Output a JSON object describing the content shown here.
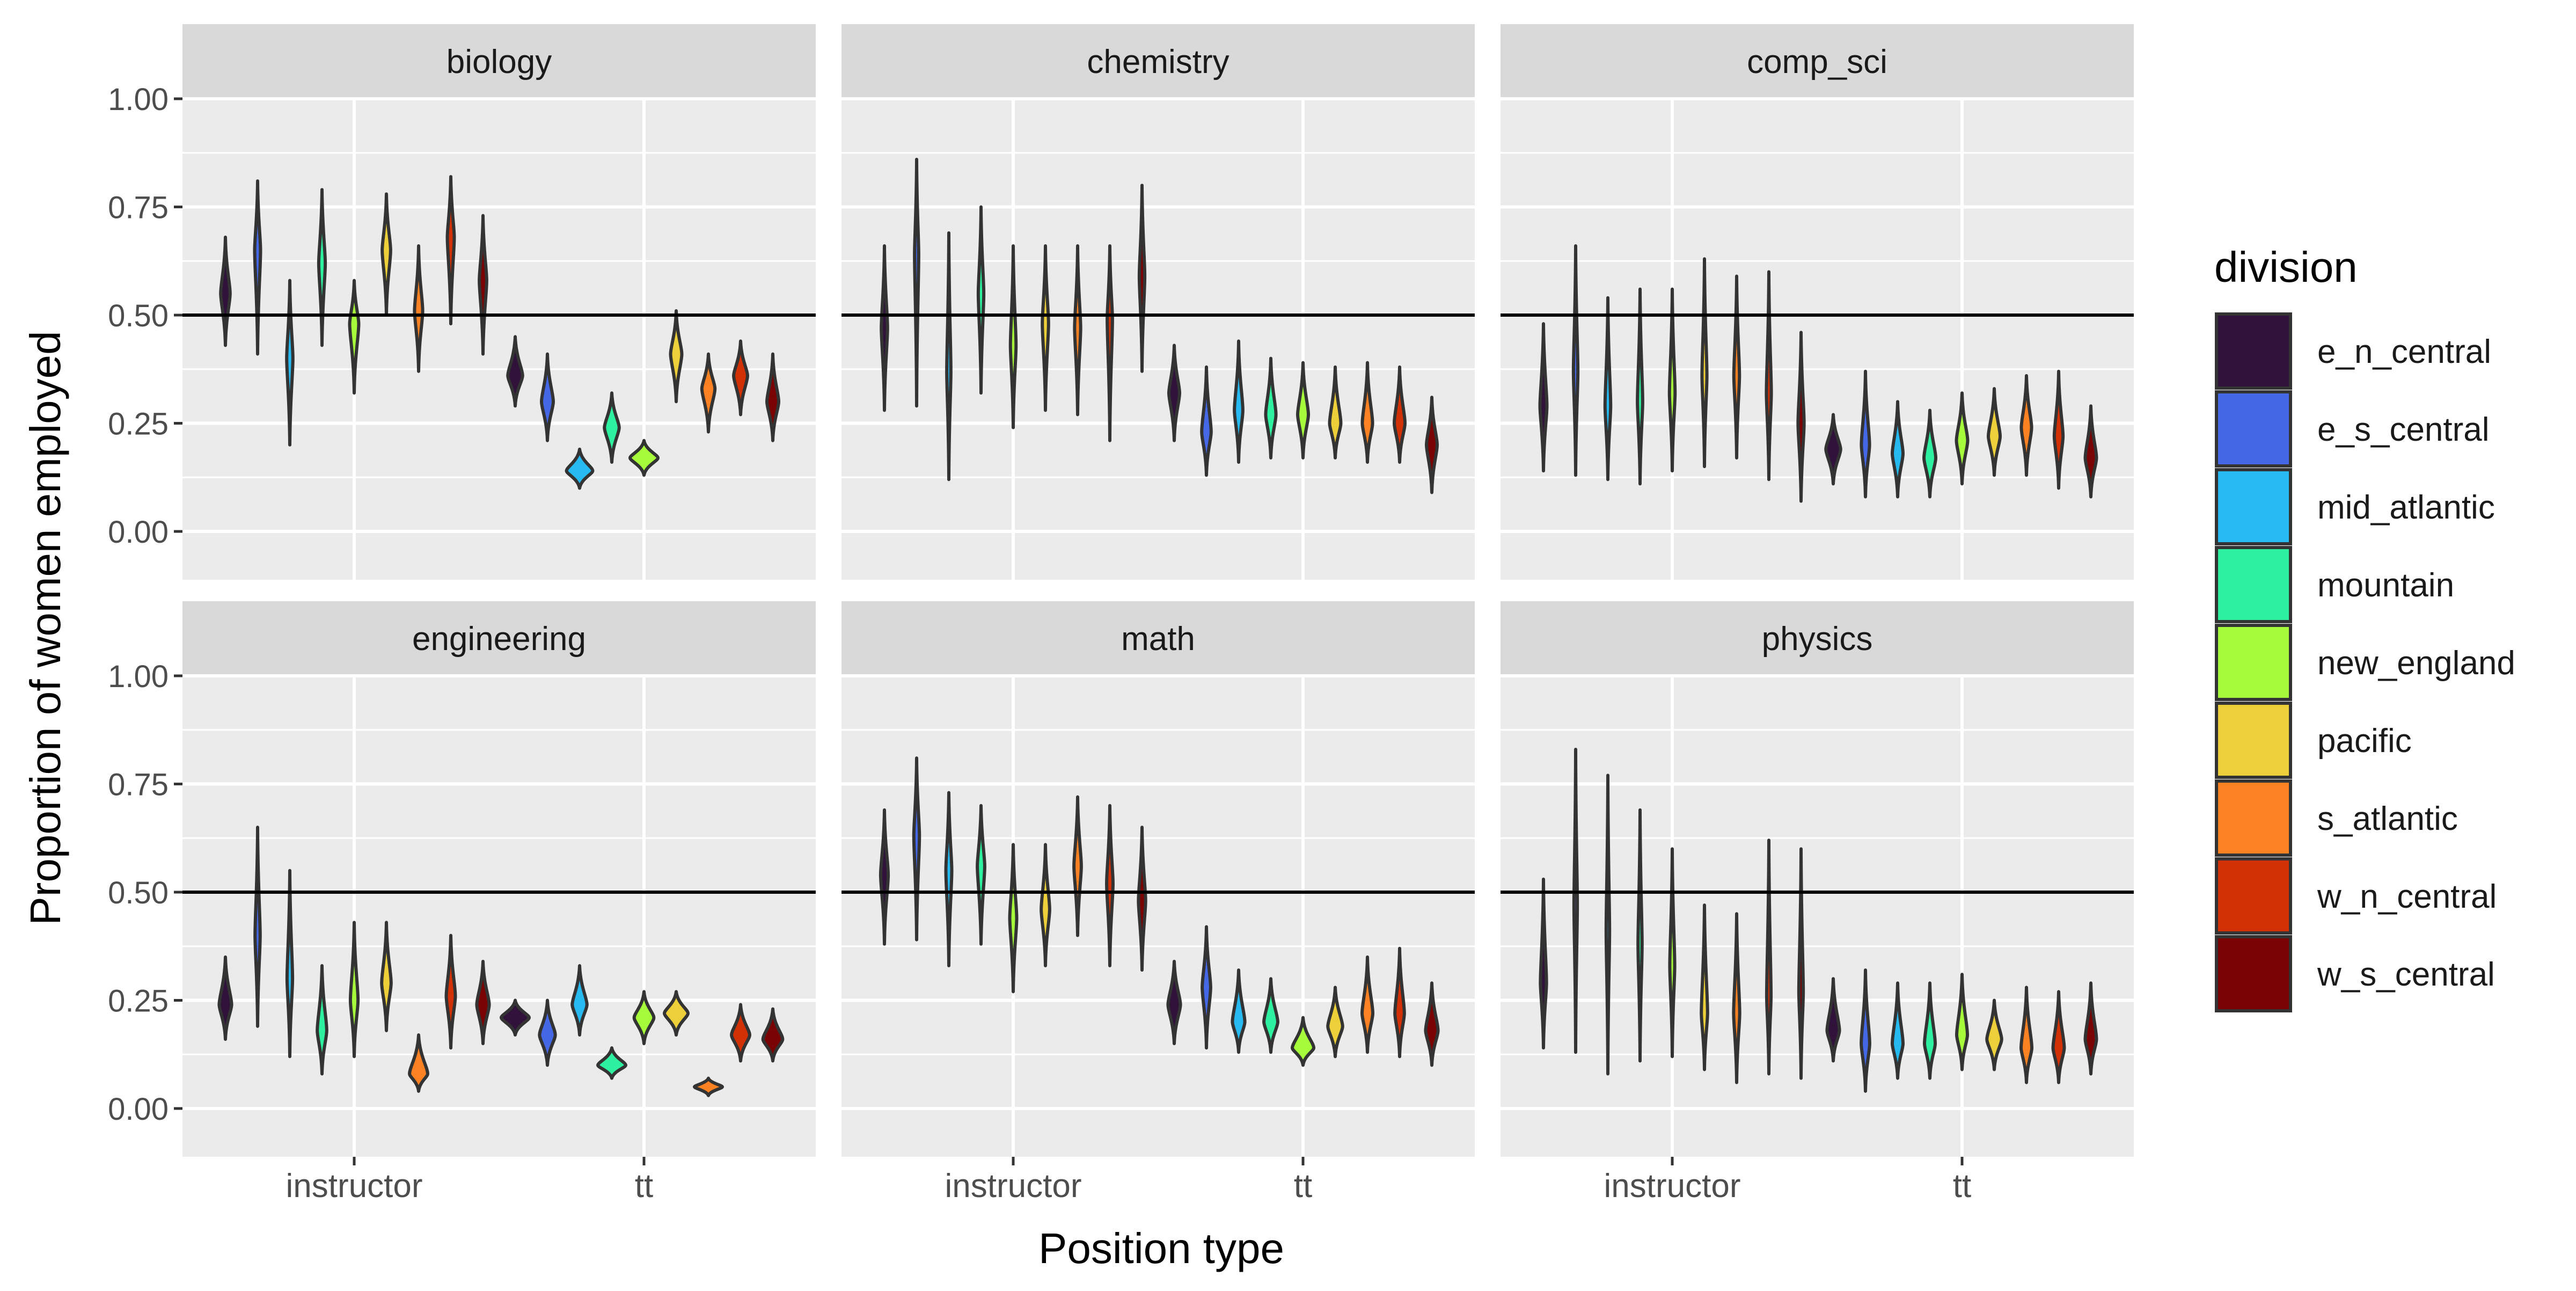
{
  "chart_data": {
    "type": "violin",
    "ylabel": "Proportion of women employed",
    "xlabel": "Position type",
    "categories": [
      "instructor",
      "tt"
    ],
    "y_ticks": [
      "0.00",
      "0.25",
      "0.50",
      "0.75",
      "1.00"
    ],
    "ylim": [
      0,
      1.1
    ],
    "reference_line": 0.5,
    "grid": true,
    "legend": {
      "title": "division",
      "placement": "right",
      "entries": [
        "e_n_central",
        "e_s_central",
        "mid_atlantic",
        "mountain",
        "new_england",
        "pacific",
        "s_atlantic",
        "w_n_central",
        "w_s_central"
      ]
    },
    "colors": [
      "#30123b",
      "#4568e6",
      "#27baf0",
      "#2ef19f",
      "#a6fc3b",
      "#edcf39",
      "#fb8122",
      "#d23105",
      "#7a0403"
    ],
    "facets": [
      {
        "title": "biology",
        "instructor": [
          [
            0.43,
            0.68,
            0.55
          ],
          [
            0.41,
            0.81,
            0.65
          ],
          [
            0.2,
            0.58,
            0.4
          ],
          [
            0.43,
            0.79,
            0.62
          ],
          [
            0.32,
            0.58,
            0.48
          ],
          [
            0.5,
            0.78,
            0.65
          ],
          [
            0.37,
            0.66,
            0.51
          ],
          [
            0.48,
            0.82,
            0.68
          ],
          [
            0.41,
            0.73,
            0.58
          ]
        ],
        "tt": [
          [
            0.29,
            0.45,
            0.36
          ],
          [
            0.21,
            0.41,
            0.3
          ],
          [
            0.1,
            0.19,
            0.14
          ],
          [
            0.16,
            0.32,
            0.24
          ],
          [
            0.13,
            0.21,
            0.17
          ],
          [
            0.3,
            0.51,
            0.41
          ],
          [
            0.23,
            0.41,
            0.33
          ],
          [
            0.27,
            0.44,
            0.36
          ],
          [
            0.21,
            0.41,
            0.3
          ]
        ]
      },
      {
        "title": "chemistry",
        "instructor": [
          [
            0.28,
            0.66,
            0.47
          ],
          [
            0.29,
            0.86,
            0.64
          ],
          [
            0.12,
            0.69,
            0.37
          ],
          [
            0.32,
            0.75,
            0.55
          ],
          [
            0.24,
            0.66,
            0.43
          ],
          [
            0.28,
            0.66,
            0.48
          ],
          [
            0.27,
            0.66,
            0.47
          ],
          [
            0.21,
            0.66,
            0.49
          ],
          [
            0.37,
            0.8,
            0.59
          ]
        ],
        "tt": [
          [
            0.21,
            0.43,
            0.32
          ],
          [
            0.13,
            0.38,
            0.23
          ],
          [
            0.16,
            0.44,
            0.28
          ],
          [
            0.17,
            0.4,
            0.27
          ],
          [
            0.17,
            0.39,
            0.27
          ],
          [
            0.17,
            0.38,
            0.25
          ],
          [
            0.16,
            0.39,
            0.25
          ],
          [
            0.16,
            0.38,
            0.25
          ],
          [
            0.09,
            0.31,
            0.2
          ]
        ]
      },
      {
        "title": "comp_sci",
        "instructor": [
          [
            0.14,
            0.48,
            0.29
          ],
          [
            0.13,
            0.66,
            0.37
          ],
          [
            0.12,
            0.54,
            0.29
          ],
          [
            0.11,
            0.56,
            0.3
          ],
          [
            0.14,
            0.56,
            0.32
          ],
          [
            0.15,
            0.63,
            0.36
          ],
          [
            0.17,
            0.59,
            0.36
          ],
          [
            0.12,
            0.6,
            0.32
          ],
          [
            0.07,
            0.46,
            0.25
          ]
        ],
        "tt": [
          [
            0.11,
            0.27,
            0.19
          ],
          [
            0.08,
            0.37,
            0.2
          ],
          [
            0.08,
            0.3,
            0.18
          ],
          [
            0.08,
            0.28,
            0.17
          ],
          [
            0.11,
            0.32,
            0.21
          ],
          [
            0.13,
            0.33,
            0.22
          ],
          [
            0.13,
            0.36,
            0.24
          ],
          [
            0.1,
            0.37,
            0.22
          ],
          [
            0.08,
            0.29,
            0.17
          ]
        ]
      },
      {
        "title": "engineering",
        "instructor": [
          [
            0.16,
            0.35,
            0.24
          ],
          [
            0.19,
            0.65,
            0.4
          ],
          [
            0.12,
            0.55,
            0.3
          ],
          [
            0.08,
            0.33,
            0.18
          ],
          [
            0.12,
            0.43,
            0.25
          ],
          [
            0.18,
            0.43,
            0.29
          ],
          [
            0.04,
            0.17,
            0.08
          ],
          [
            0.14,
            0.4,
            0.26
          ],
          [
            0.15,
            0.34,
            0.24
          ]
        ],
        "tt": [
          [
            0.17,
            0.25,
            0.21
          ],
          [
            0.1,
            0.25,
            0.17
          ],
          [
            0.17,
            0.33,
            0.24
          ],
          [
            0.07,
            0.14,
            0.1
          ],
          [
            0.15,
            0.27,
            0.21
          ],
          [
            0.17,
            0.27,
            0.22
          ],
          [
            0.03,
            0.07,
            0.05
          ],
          [
            0.11,
            0.24,
            0.17
          ],
          [
            0.11,
            0.23,
            0.16
          ]
        ]
      },
      {
        "title": "math",
        "instructor": [
          [
            0.38,
            0.69,
            0.54
          ],
          [
            0.39,
            0.81,
            0.63
          ],
          [
            0.33,
            0.73,
            0.55
          ],
          [
            0.38,
            0.7,
            0.56
          ],
          [
            0.27,
            0.61,
            0.44
          ],
          [
            0.33,
            0.61,
            0.46
          ],
          [
            0.4,
            0.72,
            0.56
          ],
          [
            0.33,
            0.7,
            0.52
          ],
          [
            0.32,
            0.65,
            0.48
          ]
        ],
        "tt": [
          [
            0.15,
            0.34,
            0.24
          ],
          [
            0.14,
            0.42,
            0.28
          ],
          [
            0.13,
            0.32,
            0.2
          ],
          [
            0.13,
            0.3,
            0.2
          ],
          [
            0.1,
            0.21,
            0.14
          ],
          [
            0.12,
            0.28,
            0.19
          ],
          [
            0.13,
            0.35,
            0.22
          ],
          [
            0.12,
            0.37,
            0.22
          ],
          [
            0.1,
            0.29,
            0.18
          ]
        ]
      },
      {
        "title": "physics",
        "instructor": [
          [
            0.14,
            0.53,
            0.29
          ],
          [
            0.13,
            0.83,
            0.47
          ],
          [
            0.08,
            0.77,
            0.41
          ],
          [
            0.11,
            0.69,
            0.38
          ],
          [
            0.12,
            0.6,
            0.33
          ],
          [
            0.09,
            0.47,
            0.22
          ],
          [
            0.06,
            0.45,
            0.22
          ],
          [
            0.08,
            0.62,
            0.26
          ],
          [
            0.07,
            0.6,
            0.27
          ]
        ],
        "tt": [
          [
            0.11,
            0.3,
            0.18
          ],
          [
            0.04,
            0.32,
            0.15
          ],
          [
            0.07,
            0.29,
            0.15
          ],
          [
            0.07,
            0.29,
            0.15
          ],
          [
            0.09,
            0.31,
            0.17
          ],
          [
            0.09,
            0.25,
            0.16
          ],
          [
            0.06,
            0.28,
            0.14
          ],
          [
            0.06,
            0.27,
            0.14
          ],
          [
            0.08,
            0.29,
            0.16
          ]
        ]
      }
    ]
  }
}
